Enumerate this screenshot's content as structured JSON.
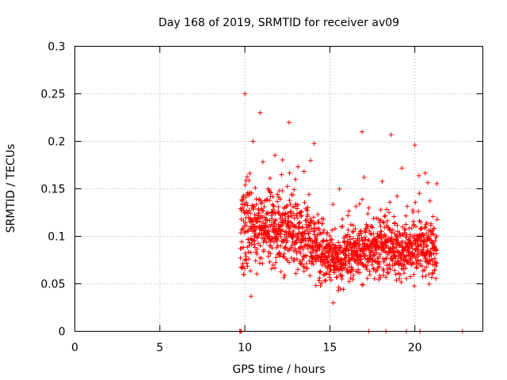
{
  "chart_data": {
    "type": "scatter",
    "title": "Day 168 of 2019, SRMTID for receiver av09",
    "xlabel": "GPS time / hours",
    "ylabel": "SRMTID / TECUs",
    "xlim": [
      0,
      24
    ],
    "ylim": [
      0,
      0.3
    ],
    "xticks": [
      0,
      5,
      10,
      15,
      20
    ],
    "yticks": [
      0,
      0.05,
      0.1,
      0.15,
      0.2,
      0.25,
      0.3
    ],
    "xtick_labels": [
      "0",
      "5",
      "10",
      "15",
      "20"
    ],
    "ytick_labels": [
      "0",
      "0.05",
      "0.1",
      "0.15",
      "0.2",
      "0.25",
      "0.3"
    ],
    "grid": true,
    "marker": "+",
    "series": [
      {
        "name": "SRMTID",
        "color": "#ff0000",
        "x_range": [
          9.75,
          21.3
        ],
        "points_approx": 1500,
        "zero_points_x": [
          9.7,
          9.75,
          9.8,
          17.3,
          18.3,
          19.5,
          20.3,
          22.8
        ],
        "highlight_points": [
          {
            "x": 10.0,
            "y": 0.25
          },
          {
            "x": 10.9,
            "y": 0.23
          },
          {
            "x": 12.6,
            "y": 0.22
          },
          {
            "x": 16.9,
            "y": 0.21
          },
          {
            "x": 18.6,
            "y": 0.207
          },
          {
            "x": 20.0,
            "y": 0.196
          },
          {
            "x": 15.2,
            "y": 0.03
          }
        ],
        "trend": [
          {
            "x": 10.0,
            "mean": 0.11,
            "spread": 0.05
          },
          {
            "x": 11.0,
            "mean": 0.11,
            "spread": 0.04
          },
          {
            "x": 12.0,
            "mean": 0.11,
            "spread": 0.04
          },
          {
            "x": 13.0,
            "mean": 0.105,
            "spread": 0.04
          },
          {
            "x": 14.0,
            "mean": 0.095,
            "spread": 0.035
          },
          {
            "x": 15.0,
            "mean": 0.08,
            "spread": 0.03
          },
          {
            "x": 15.5,
            "mean": 0.07,
            "spread": 0.025
          },
          {
            "x": 16.0,
            "mean": 0.08,
            "spread": 0.03
          },
          {
            "x": 17.0,
            "mean": 0.085,
            "spread": 0.03
          },
          {
            "x": 18.0,
            "mean": 0.09,
            "spread": 0.03
          },
          {
            "x": 19.0,
            "mean": 0.085,
            "spread": 0.03
          },
          {
            "x": 20.0,
            "mean": 0.09,
            "spread": 0.03
          },
          {
            "x": 21.2,
            "mean": 0.085,
            "spread": 0.03
          }
        ]
      }
    ]
  }
}
